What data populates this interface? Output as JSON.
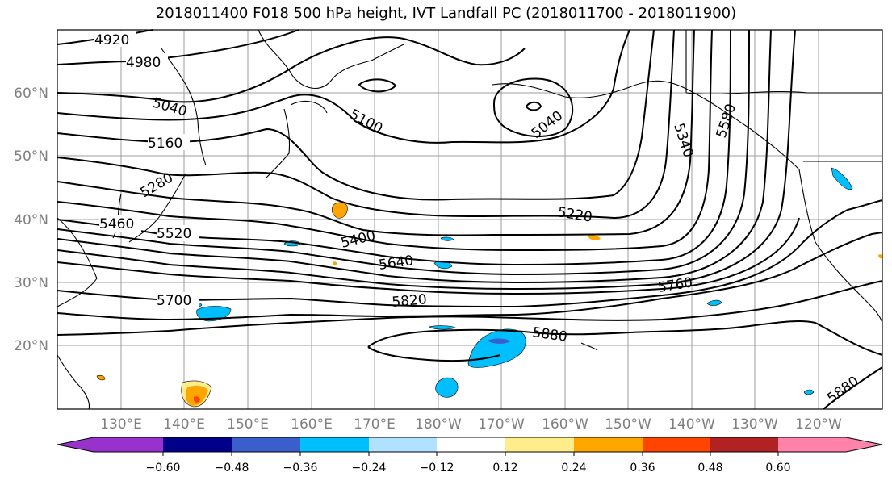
{
  "title": "2018011400 F018 500 hPa height, IVT Landfall PC (2018011700 - 2018011900)",
  "map": {
    "lat_labels": [
      "60°N",
      "50°N",
      "40°N",
      "30°N",
      "20°N"
    ],
    "lon_labels": [
      "130°E",
      "140°E",
      "150°E",
      "160°E",
      "170°E",
      "180°W",
      "170°W",
      "160°W",
      "150°W",
      "140°W",
      "130°W",
      "120°W"
    ],
    "contour_labels": [
      "4920",
      "4980",
      "5040",
      "5100",
      "5040",
      "5160",
      "5280",
      "5340",
      "5460",
      "5520",
      "5400",
      "5220",
      "5640",
      "5700",
      "5820",
      "5760",
      "5880",
      "5880",
      "5580"
    ]
  },
  "colorbar": {
    "colors": [
      "#9932cc",
      "#00008b",
      "#3a5fcd",
      "#00bfff",
      "#b0e2ff",
      "#ffffff",
      "#ffec8b",
      "#ffa500",
      "#ff4500",
      "#b22222",
      "#ff82ab"
    ],
    "ticks": [
      "−0.60",
      "−0.48",
      "−0.36",
      "−0.24",
      "−0.12",
      "0.12",
      "0.24",
      "0.36",
      "0.48",
      "0.60"
    ]
  }
}
